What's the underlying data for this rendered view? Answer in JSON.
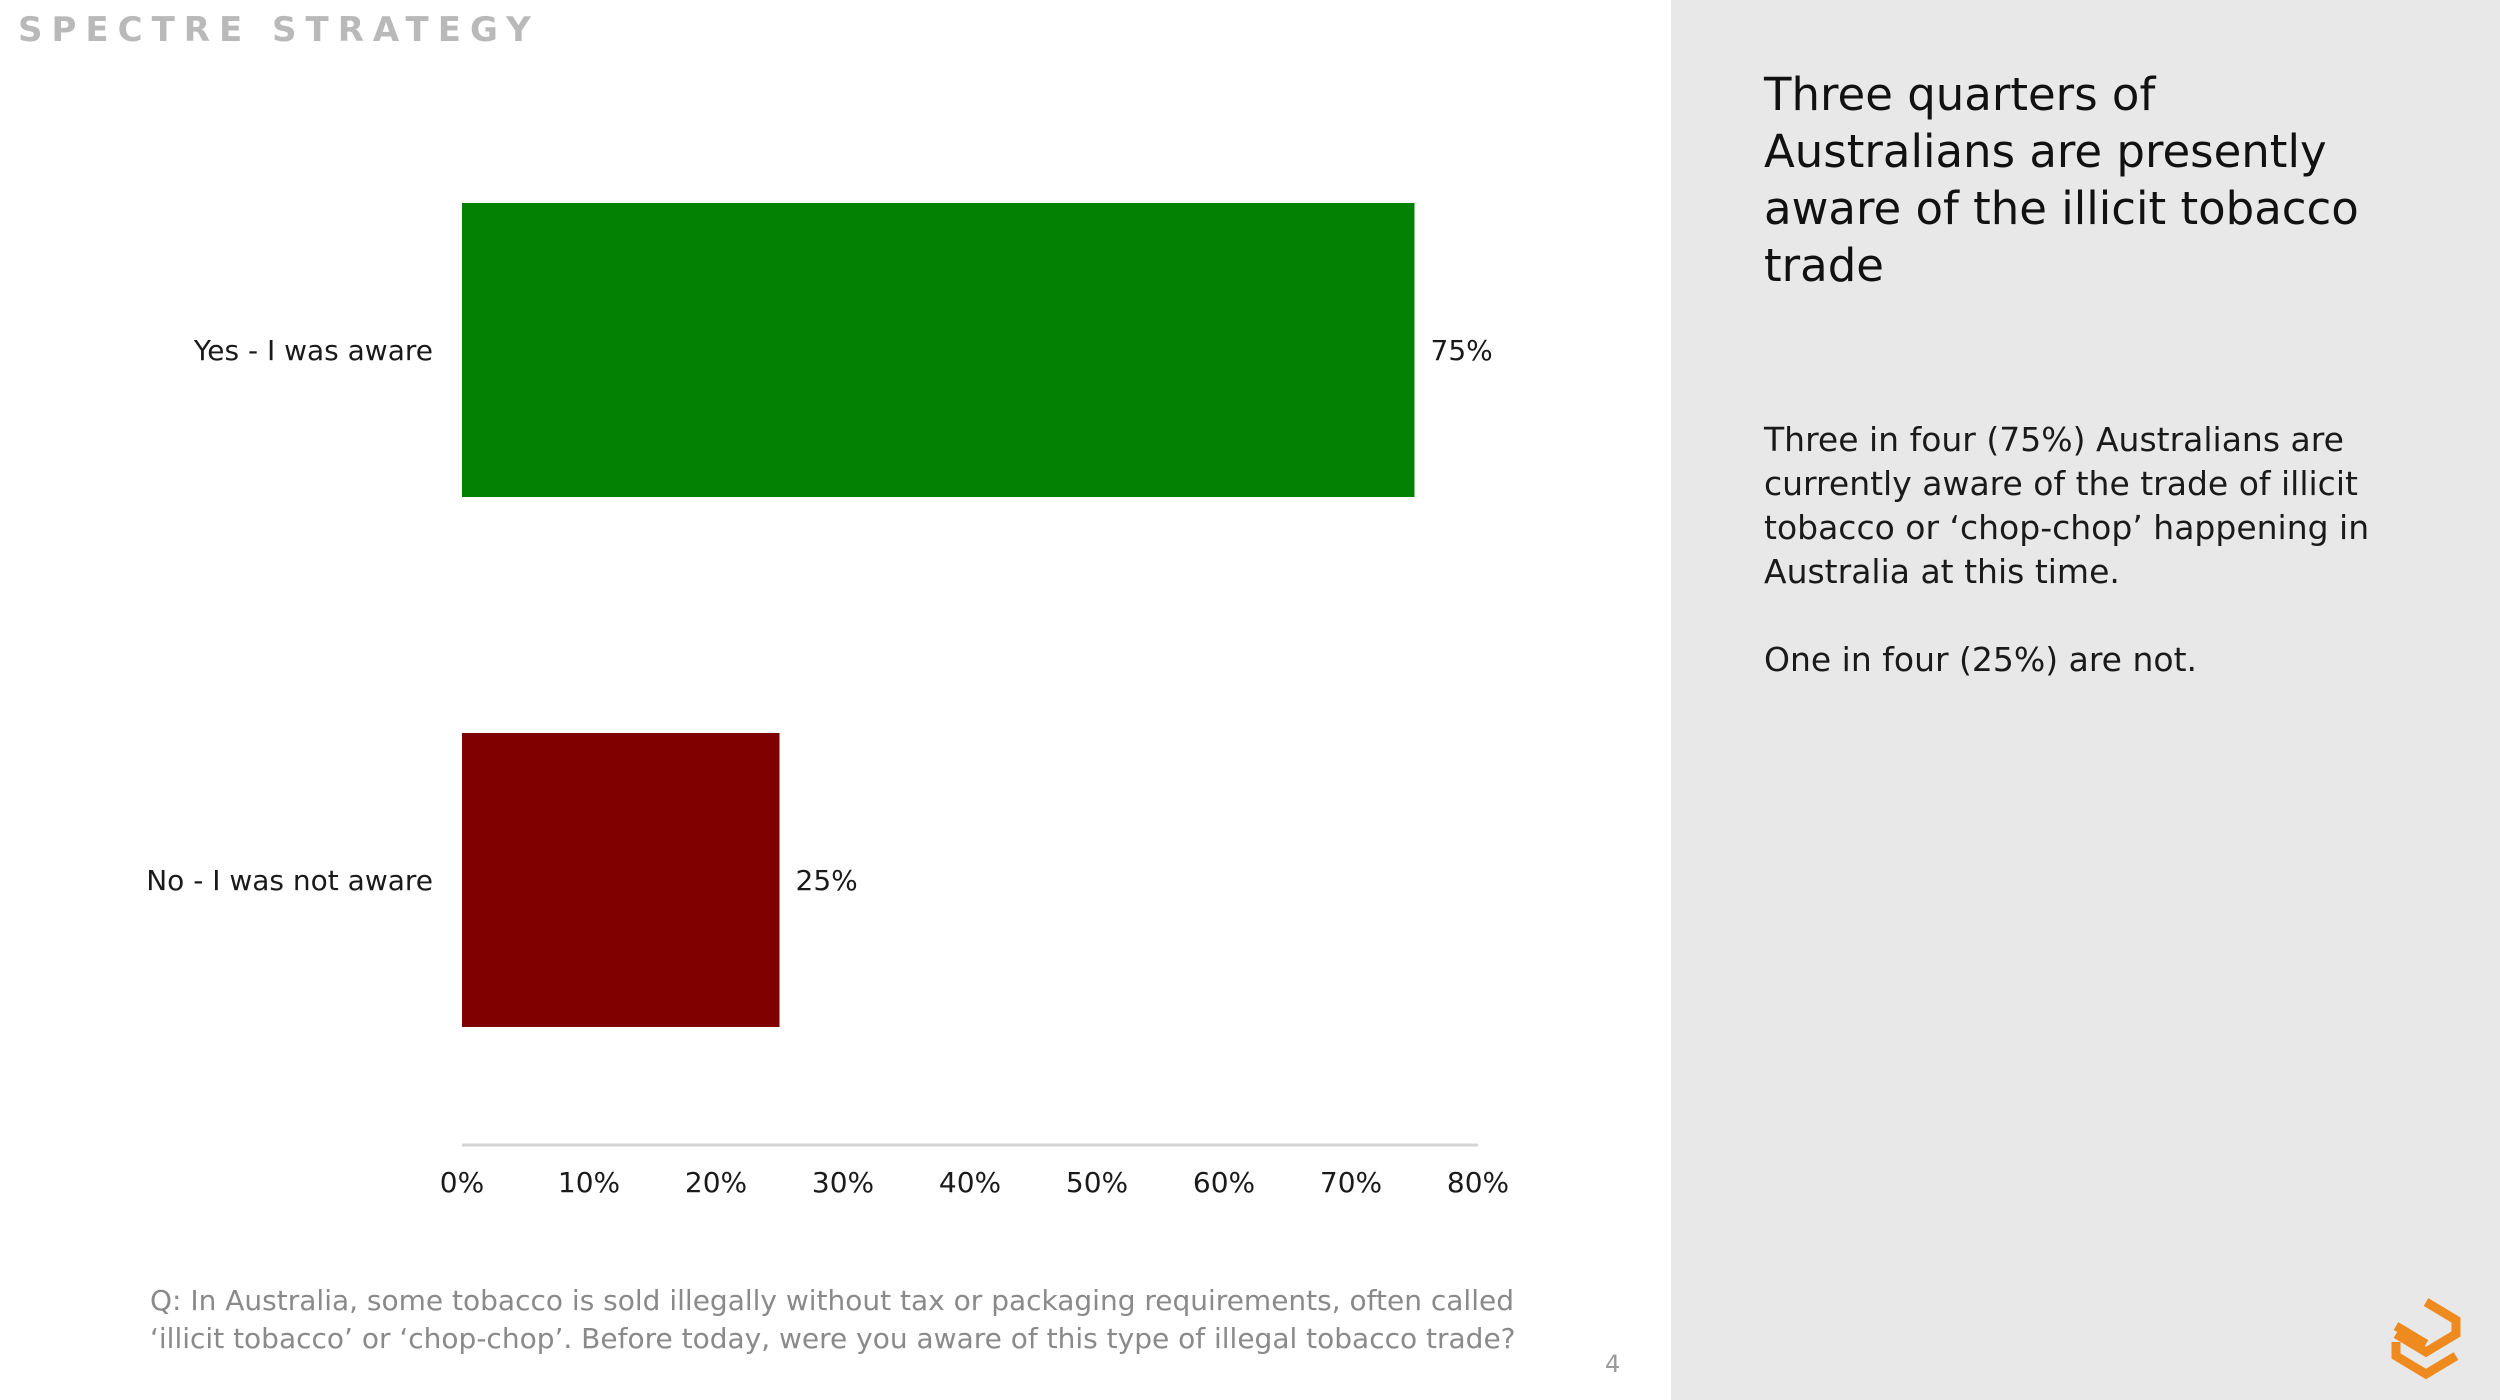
{
  "brand": {
    "name": "SPECTRE STRATEGY"
  },
  "chart_data": {
    "type": "bar",
    "orientation": "horizontal",
    "categories": [
      "Yes - I was aware",
      "No - I was not aware"
    ],
    "values": [
      75,
      25
    ],
    "value_labels": [
      "75%",
      "25%"
    ],
    "colors": [
      "#028102",
      "#800000"
    ],
    "xlim": [
      0,
      80
    ],
    "xticks": [
      0,
      10,
      20,
      30,
      40,
      50,
      60,
      70,
      80
    ],
    "xtick_labels": [
      "0%",
      "10%",
      "20%",
      "30%",
      "40%",
      "50%",
      "60%",
      "70%",
      "80%"
    ],
    "grid": false
  },
  "question": {
    "lines": [
      "Q: In Australia, some tobacco is sold illegally without tax or packaging requirements, often called",
      "‘illicit tobacco’ or ‘chop-chop’. Before today, were you aware of this type of illegal tobacco trade?"
    ]
  },
  "page_number": "4",
  "headline": {
    "lines": [
      "Three quarters of",
      "Australians are presently",
      "aware of the illicit tobacco",
      "trade"
    ]
  },
  "body": {
    "paragraph1": [
      "Three in four (75%) Australians are",
      "currently aware of the trade of illicit",
      "tobacco or ‘chop-chop’ happening in",
      "Australia at this time."
    ],
    "paragraph2": [
      "One in four (25%) are not."
    ]
  },
  "logo": {
    "icon": "spectre-logo-icon",
    "color": "#ef8a1f"
  }
}
